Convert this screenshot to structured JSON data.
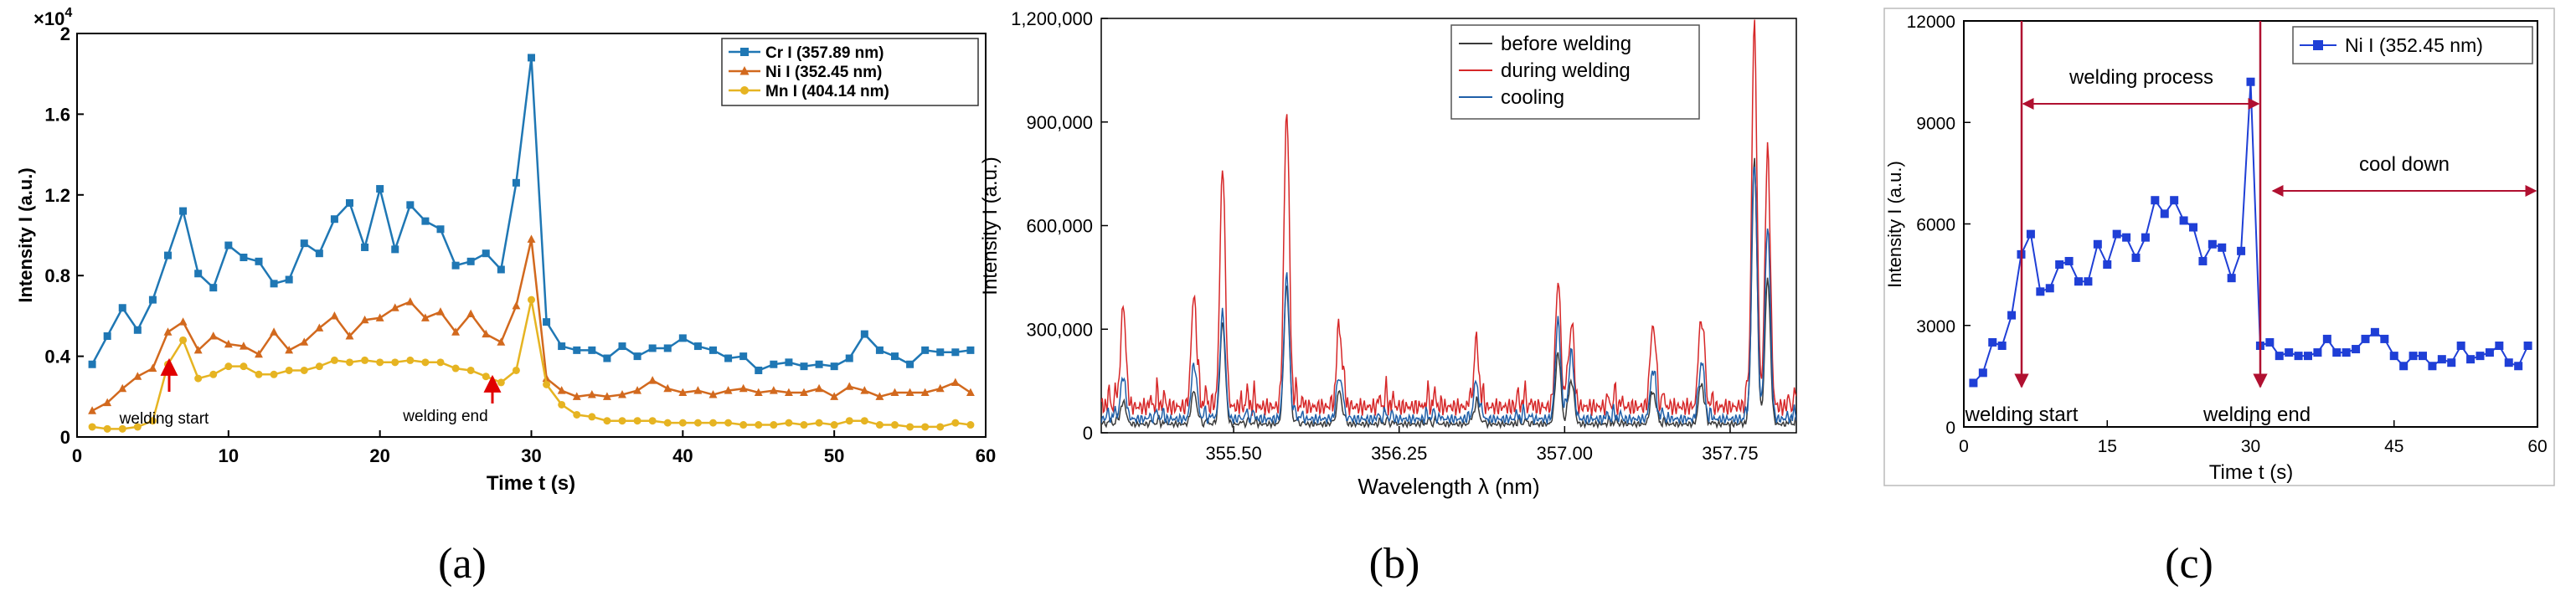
{
  "chart_data": [
    {
      "panel": "(a)",
      "type": "line",
      "title": "",
      "xlabel": "Time t (s)",
      "ylabel": "Intensity I (a.u.)",
      "xlim": [
        0,
        60
      ],
      "ylim": [
        0,
        20000
      ],
      "xticks": [
        "0",
        "10",
        "20",
        "30",
        "40",
        "50",
        "60"
      ],
      "yticks": [
        "0",
        "0.4",
        "0.8",
        "1.2",
        "1.6",
        "2"
      ],
      "yexponent": "×10",
      "yexponent_power": "4",
      "x": [
        1,
        2,
        3,
        4,
        5,
        6,
        7,
        8,
        9,
        10,
        11,
        12,
        13,
        14,
        15,
        16,
        17,
        18,
        19,
        20,
        21,
        22,
        23,
        24,
        25,
        26,
        27,
        28,
        29,
        30,
        31,
        32,
        33,
        34,
        35,
        36,
        37,
        38,
        39,
        40,
        41,
        42,
        43,
        44,
        45,
        46,
        47,
        48,
        49,
        50,
        51,
        52,
        53,
        54,
        55,
        56,
        57,
        58,
        59
      ],
      "series": [
        {
          "name": "Cr I (357.89 nm)",
          "color": "#1f77b4",
          "marker": "square",
          "values": [
            3600,
            5000,
            6400,
            5300,
            6800,
            9000,
            11200,
            8100,
            7400,
            9500,
            8900,
            8700,
            7600,
            7800,
            9600,
            9100,
            10800,
            11600,
            9400,
            12300,
            9300,
            11500,
            10700,
            10300,
            8500,
            8700,
            9100,
            8300,
            12600,
            18800,
            5700,
            4500,
            4300,
            4300,
            3900,
            4500,
            4000,
            4400,
            4400,
            4900,
            4500,
            4300,
            3900,
            4000,
            3300,
            3600,
            3700,
            3500,
            3600,
            3500,
            3900,
            5100,
            4300,
            4000,
            3600,
            4300,
            4200,
            4200,
            4300
          ]
        },
        {
          "name": "Ni I (352.45 nm)",
          "color": "#d2691e",
          "marker": "triangle",
          "values": [
            1300,
            1700,
            2400,
            3000,
            3400,
            5200,
            5700,
            4300,
            5000,
            4600,
            4500,
            4100,
            5200,
            4300,
            4700,
            5400,
            6000,
            5000,
            5800,
            5900,
            6400,
            6700,
            5900,
            6200,
            5200,
            6100,
            5100,
            4700,
            6500,
            9800,
            2900,
            2300,
            2000,
            2100,
            2000,
            2100,
            2300,
            2800,
            2400,
            2200,
            2300,
            2100,
            2300,
            2400,
            2200,
            2300,
            2200,
            2200,
            2400,
            2000,
            2500,
            2300,
            2000,
            2200,
            2200,
            2200,
            2400,
            2700,
            2200
          ]
        },
        {
          "name": "Mn I (404.14 nm)",
          "color": "#e6b422",
          "marker": "circle",
          "values": [
            500,
            400,
            400,
            500,
            800,
            3600,
            4800,
            2900,
            3100,
            3500,
            3500,
            3100,
            3100,
            3300,
            3300,
            3500,
            3800,
            3700,
            3800,
            3700,
            3700,
            3800,
            3700,
            3700,
            3400,
            3300,
            3000,
            2700,
            3300,
            6800,
            2600,
            1600,
            1100,
            1000,
            800,
            800,
            800,
            800,
            700,
            700,
            700,
            700,
            700,
            600,
            600,
            600,
            700,
            600,
            700,
            600,
            800,
            800,
            600,
            600,
            500,
            500,
            500,
            700,
            600
          ]
        }
      ],
      "annotations": [
        "welding start",
        "welding end"
      ]
    },
    {
      "panel": "(b)",
      "type": "line",
      "title": "",
      "xlabel": "Wavelength λ (nm)",
      "ylabel": "Intensity I (a.u.)",
      "xlim": [
        354.9,
        358.05
      ],
      "ylim": [
        0,
        1200000
      ],
      "xticks": [
        "355.50",
        "356.25",
        "357.00",
        "357.75"
      ],
      "yticks": [
        "0",
        "300,000",
        "600,000",
        "900,000",
        "1,200,000"
      ],
      "peaks": [
        {
          "x": 355.0,
          "before": 90000,
          "during": 360000,
          "cooling": 160000
        },
        {
          "x": 355.32,
          "before": 120000,
          "during": 400000,
          "cooling": 200000
        },
        {
          "x": 355.45,
          "before": 320000,
          "during": 775000,
          "cooling": 350000
        },
        {
          "x": 355.74,
          "before": 430000,
          "during": 930000,
          "cooling": 450000
        },
        {
          "x": 355.98,
          "before": 110000,
          "during": 290000,
          "cooling": 160000
        },
        {
          "x": 356.6,
          "before": 80000,
          "during": 230000,
          "cooling": 130000
        },
        {
          "x": 356.97,
          "before": 230000,
          "during": 430000,
          "cooling": 320000
        },
        {
          "x": 357.03,
          "before": 150000,
          "during": 300000,
          "cooling": 220000
        },
        {
          "x": 357.4,
          "before": 120000,
          "during": 310000,
          "cooling": 180000
        },
        {
          "x": 357.62,
          "before": 140000,
          "during": 330000,
          "cooling": 200000
        },
        {
          "x": 357.86,
          "before": 780000,
          "during": 1150000,
          "cooling": 780000
        },
        {
          "x": 357.92,
          "before": 450000,
          "during": 820000,
          "cooling": 600000
        }
      ],
      "series": [
        {
          "name": "before welding",
          "color": "#3a3a3a",
          "base": 25000
        },
        {
          "name": "during welding",
          "color": "#d62728",
          "base": 75000
        },
        {
          "name": "cooling",
          "color": "#1f5fa8",
          "base": 40000
        }
      ]
    },
    {
      "panel": "(c)",
      "type": "line",
      "title": "",
      "xlabel": "Time t (s)",
      "ylabel": "Intensity I (a.u.)",
      "xlim": [
        0,
        60
      ],
      "ylim": [
        0,
        12000
      ],
      "xticks": [
        "0",
        "15",
        "30",
        "45",
        "60"
      ],
      "yticks": [
        "0",
        "3000",
        "6000",
        "9000",
        "12000"
      ],
      "x": [
        1,
        2,
        3,
        4,
        5,
        6,
        7,
        8,
        9,
        10,
        11,
        12,
        13,
        14,
        15,
        16,
        17,
        18,
        19,
        20,
        21,
        22,
        23,
        24,
        25,
        26,
        27,
        28,
        29,
        30,
        31,
        32,
        33,
        34,
        35,
        36,
        37,
        38,
        39,
        40,
        41,
        42,
        43,
        44,
        45,
        46,
        47,
        48,
        49,
        50,
        51,
        52,
        53,
        54,
        55,
        56,
        57,
        58,
        59
      ],
      "series": [
        {
          "name": "Ni I (352.45 nm)",
          "color": "#1f3fd6",
          "marker": "square",
          "values": [
            1300,
            1600,
            2500,
            2400,
            3300,
            5100,
            5700,
            4000,
            4100,
            4800,
            4900,
            4300,
            4300,
            5400,
            4800,
            5700,
            5600,
            5000,
            5600,
            6700,
            6300,
            6700,
            6100,
            5900,
            4900,
            5400,
            5300,
            4400,
            5200,
            10200,
            2400,
            2500,
            2100,
            2200,
            2100,
            2100,
            2200,
            2600,
            2200,
            2200,
            2300,
            2600,
            2800,
            2600,
            2100,
            1800,
            2100,
            2100,
            1800,
            2000,
            1900,
            2400,
            2000,
            2100,
            2200,
            2400,
            1900,
            1800,
            2400
          ]
        }
      ],
      "annotations": [
        "welding process",
        "cool down",
        "welding start",
        "welding end"
      ]
    }
  ],
  "panels": [
    "(a)",
    "(b)",
    "(c)"
  ]
}
